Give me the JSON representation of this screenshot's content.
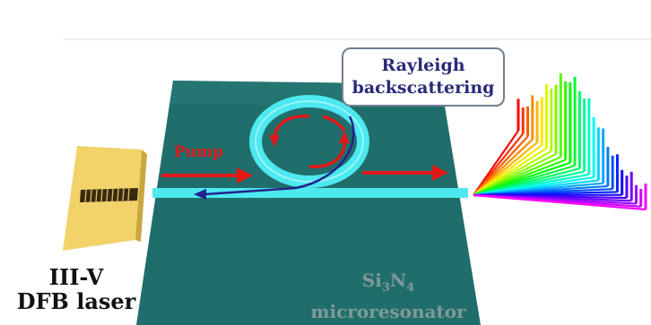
{
  "diagram": {
    "laser": {
      "line1": "III-V",
      "line2": "DFB laser"
    },
    "pump_label": "Pump",
    "callout": {
      "line1": "Rayleigh",
      "line2": "backscattering"
    },
    "chip": {
      "material_prefix": "Si",
      "sub_3": "3",
      "material_mid": "N",
      "sub_4": "4",
      "name": "microresonator"
    },
    "colors": {
      "chip": "#206e6b",
      "waveguide": "#4de8f0",
      "pump_arrow": "#e01818",
      "laser_body": "#f2d36a",
      "backscatter_line": "#23238c"
    },
    "spectrum": {
      "line_count": 28
    }
  }
}
